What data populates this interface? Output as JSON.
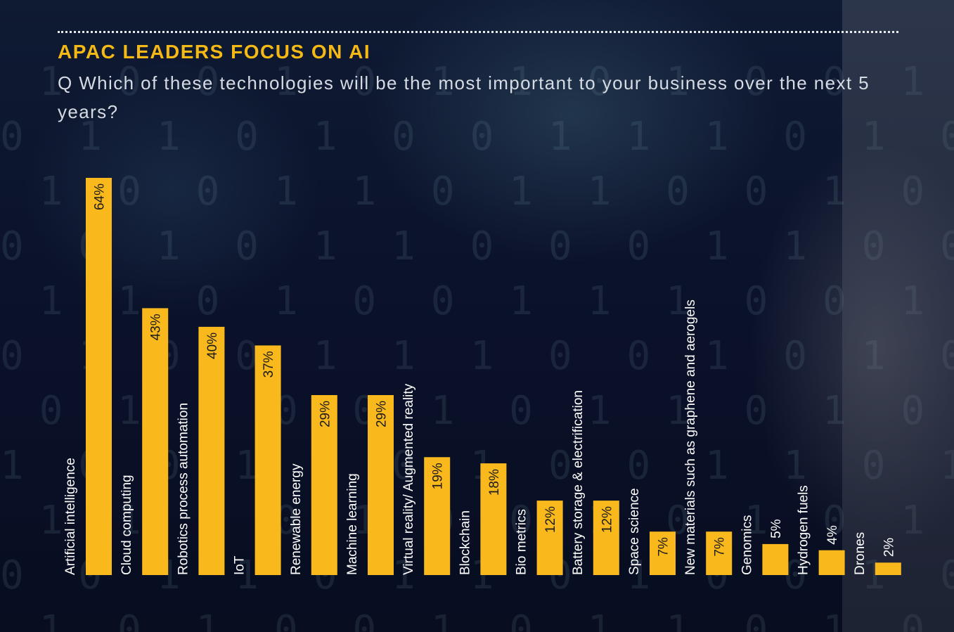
{
  "title": "APAC LEADERS FOCUS ON AI",
  "subtitle": "Q Which of these technologies will be the most important to your business over the next 5 years?",
  "colors": {
    "bar": "#f9b91c",
    "label": "#ffffff",
    "value": "#1a1a1a",
    "title": "#f5b915"
  },
  "chart_data": {
    "type": "bar",
    "orientation": "vertical",
    "value_unit": "%",
    "categories": [
      "Artificial intelligence",
      "Cloud computing",
      "Robotics process automation",
      "IoT",
      "Renewable energy",
      "Machine learning",
      "Virtual reality/ Augmented reality",
      "Blockchain",
      "Bio metrics",
      "Battery storage & electrification",
      "Space science",
      "New materials such as graphene and aerogels",
      "Genomics",
      "Hydrogen fuels",
      "Drones"
    ],
    "values": [
      64,
      43,
      40,
      37,
      29,
      29,
      19,
      18,
      12,
      12,
      7,
      7,
      5,
      4,
      2
    ],
    "data_labels": [
      "64%",
      "43%",
      "40%",
      "37%",
      "29%",
      "29%",
      "19%",
      "18%",
      "12%",
      "12%",
      "7%",
      "7%",
      "5%",
      "4%",
      "2%"
    ],
    "ylim": [
      0,
      64
    ],
    "grid": false,
    "legend": "none"
  }
}
